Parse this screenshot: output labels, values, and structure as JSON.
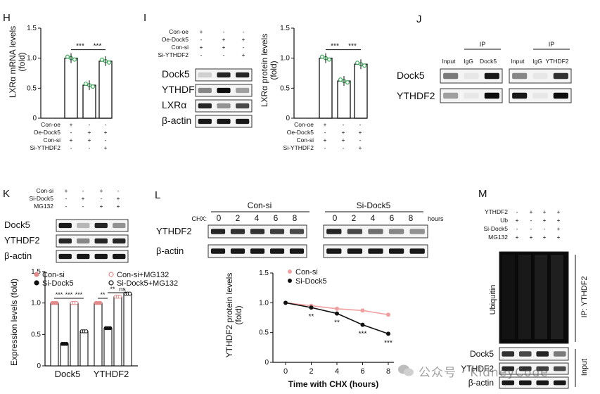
{
  "panel_letters": {
    "H": "H",
    "I": "I",
    "J": "J",
    "K": "K",
    "L": "L",
    "M": "M"
  },
  "chart_data": [
    {
      "id": "H",
      "type": "bar",
      "ylabel": "LXRα mRNA levels\n(fold)",
      "ylim": [
        0,
        1.5
      ],
      "yticks": [
        "0",
        "0.5",
        "1.0",
        "1.5"
      ],
      "values": [
        1.0,
        0.55,
        0.95
      ],
      "sig": [
        "***",
        "***"
      ],
      "conditions": [
        {
          "name": "Con-oe",
          "signs": [
            "+",
            "-",
            "-"
          ]
        },
        {
          "name": "Oe-Dock5",
          "signs": [
            "-",
            "+",
            "+"
          ]
        },
        {
          "name": "Con-si",
          "signs": [
            "+",
            "+",
            "-"
          ]
        },
        {
          "name": "Si-YTHDF2",
          "signs": [
            "-",
            "-",
            "+"
          ]
        }
      ]
    },
    {
      "id": "I_quant",
      "type": "bar",
      "ylabel": "LXRα protein levels\n(fold)",
      "ylim": [
        0,
        1.5
      ],
      "yticks": [
        "0",
        "0.5",
        "1.0",
        "1.5"
      ],
      "values": [
        1.0,
        0.62,
        0.9
      ],
      "sig": [
        "***",
        "***"
      ],
      "conditions": [
        {
          "name": "Con-oe",
          "signs": [
            "+",
            "-",
            "-"
          ]
        },
        {
          "name": "Oe-Dock5",
          "signs": [
            "-",
            "+",
            "+"
          ]
        },
        {
          "name": "Con-si",
          "signs": [
            "+",
            "+",
            "-"
          ]
        },
        {
          "name": "Si-YTHDF2",
          "signs": [
            "-",
            "-",
            "+"
          ]
        }
      ]
    },
    {
      "id": "K_quant",
      "type": "bar",
      "ylabel": "Expression levels (fold)",
      "ylim": [
        0,
        1.5
      ],
      "yticks": [
        "0",
        "0.5",
        "1.0",
        "1.5"
      ],
      "categories": [
        "Dock5",
        "YTHDF2"
      ],
      "series": [
        {
          "name": "Con-si",
          "values": [
            1.0,
            1.0
          ]
        },
        {
          "name": "Si-Dock5",
          "values": [
            0.35,
            0.6
          ]
        },
        {
          "name": "Con-si+MG132",
          "values": [
            1.0,
            1.1
          ]
        },
        {
          "name": "Si-Dock5+MG132",
          "values": [
            0.55,
            1.15
          ]
        }
      ],
      "sig": [
        "***",
        "***",
        "**",
        "ns",
        "***",
        "**"
      ]
    },
    {
      "id": "L_quant",
      "type": "line",
      "ylabel": "YTHDF2 protein levels\n(fold)",
      "xlabel": "Time with CHX (hours)",
      "x": [
        0,
        2,
        4,
        6,
        8
      ],
      "xticks": [
        "0",
        "2",
        "4",
        "6",
        "8"
      ],
      "ylim": [
        0,
        1.5
      ],
      "yticks": [
        "0",
        "0.5",
        "1.0",
        "1.5"
      ],
      "series": [
        {
          "name": "Con-si",
          "values": [
            1.0,
            0.95,
            0.9,
            0.87,
            0.8
          ]
        },
        {
          "name": "Si-Dock5",
          "values": [
            1.0,
            0.92,
            0.82,
            0.63,
            0.48
          ]
        }
      ],
      "sig": [
        "**",
        "**",
        "***",
        "***"
      ]
    }
  ],
  "blots": {
    "I": {
      "conditions": [
        {
          "name": "Con-oe",
          "signs": [
            "+",
            "-",
            "-"
          ]
        },
        {
          "name": "Oe-Dock5",
          "signs": [
            "-",
            "+",
            "+"
          ]
        },
        {
          "name": "Con-si",
          "signs": [
            "+",
            "+",
            "-"
          ]
        },
        {
          "name": "Si-YTHDF2",
          "signs": [
            "-",
            "-",
            "+"
          ]
        }
      ],
      "rows": [
        "Dock5",
        "YTHDF2",
        "LXRα",
        "β-actin"
      ]
    },
    "J": {
      "ip": "IP",
      "left_lanes": [
        "Input",
        "IgG",
        "Dock5"
      ],
      "right_lanes": [
        "Input",
        "IgG",
        "YTHDF2"
      ],
      "rows": [
        "Dock5",
        "YTHDF2"
      ]
    },
    "K": {
      "conditions": [
        {
          "name": "Con-si",
          "signs": [
            "+",
            "-",
            "+",
            "-"
          ]
        },
        {
          "name": "Si-Dock5",
          "signs": [
            "-",
            "+",
            "-",
            "+"
          ]
        },
        {
          "name": "MG132",
          "signs": [
            "-",
            "-",
            "+",
            "+"
          ]
        }
      ],
      "rows": [
        "Dock5",
        "YTHDF2",
        "β-actin"
      ]
    },
    "L": {
      "groups": [
        "Con-si",
        "Si-Dock5"
      ],
      "chx_label": "CHX:",
      "hours_label": "hours",
      "times": [
        "0",
        "2",
        "4",
        "6",
        "8"
      ],
      "rows": [
        "YTHDF2",
        "β-actin"
      ]
    },
    "M": {
      "conditions": [
        {
          "name": "YTHDF2",
          "signs": [
            "-",
            "+",
            "+",
            "+"
          ]
        },
        {
          "name": "Ub",
          "signs": [
            "+",
            "-",
            "+",
            "+"
          ]
        },
        {
          "name": "Si-Dock5",
          "signs": [
            "-",
            "-",
            "-",
            "+"
          ]
        },
        {
          "name": "MG132",
          "signs": [
            "+",
            "+",
            "+",
            "+"
          ]
        }
      ],
      "ubiquitin": "Ubiquitin",
      "ip_label": "IP: YTHDF2",
      "input_label": "Input",
      "input_rows": [
        "Dock5",
        "YTHDF2",
        "β-actin"
      ]
    }
  },
  "watermark": "公众号 · KidneyCode"
}
